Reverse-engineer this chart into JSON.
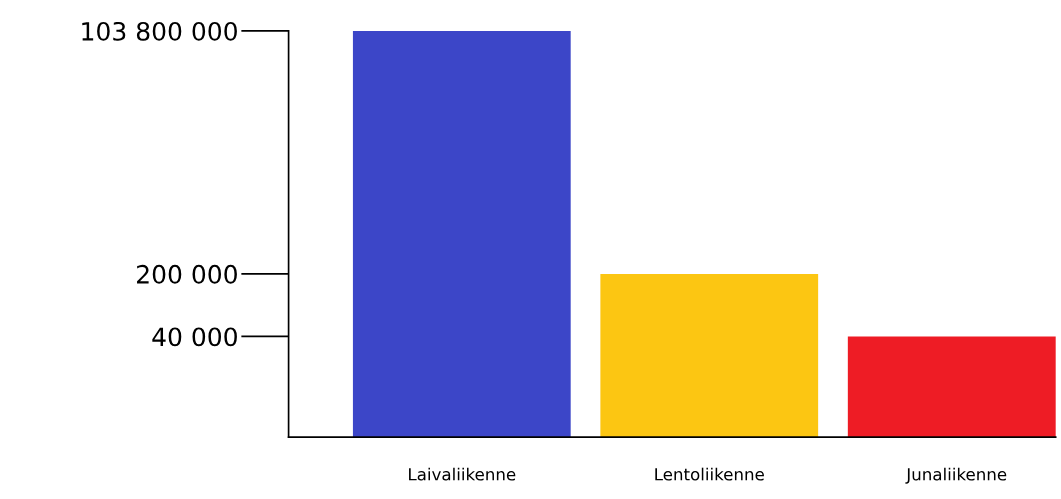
{
  "chart_data": {
    "type": "bar",
    "categories": [
      "Laivaliikenne",
      "Lentoliikenne",
      "Junaliikenne"
    ],
    "values": [
      103800000,
      200000,
      40000
    ],
    "colors": [
      "#3c46c8",
      "#fcc612",
      "#ee1c25"
    ],
    "ylim": [
      3000,
      103800000
    ],
    "log": "y",
    "yticks": [
      {
        "value": 40000,
        "label": "40 000"
      },
      {
        "value": 200000,
        "label": "200 000"
      },
      {
        "value": 103800000,
        "label": "103 800 000"
      }
    ],
    "grid": false,
    "legend": false
  }
}
